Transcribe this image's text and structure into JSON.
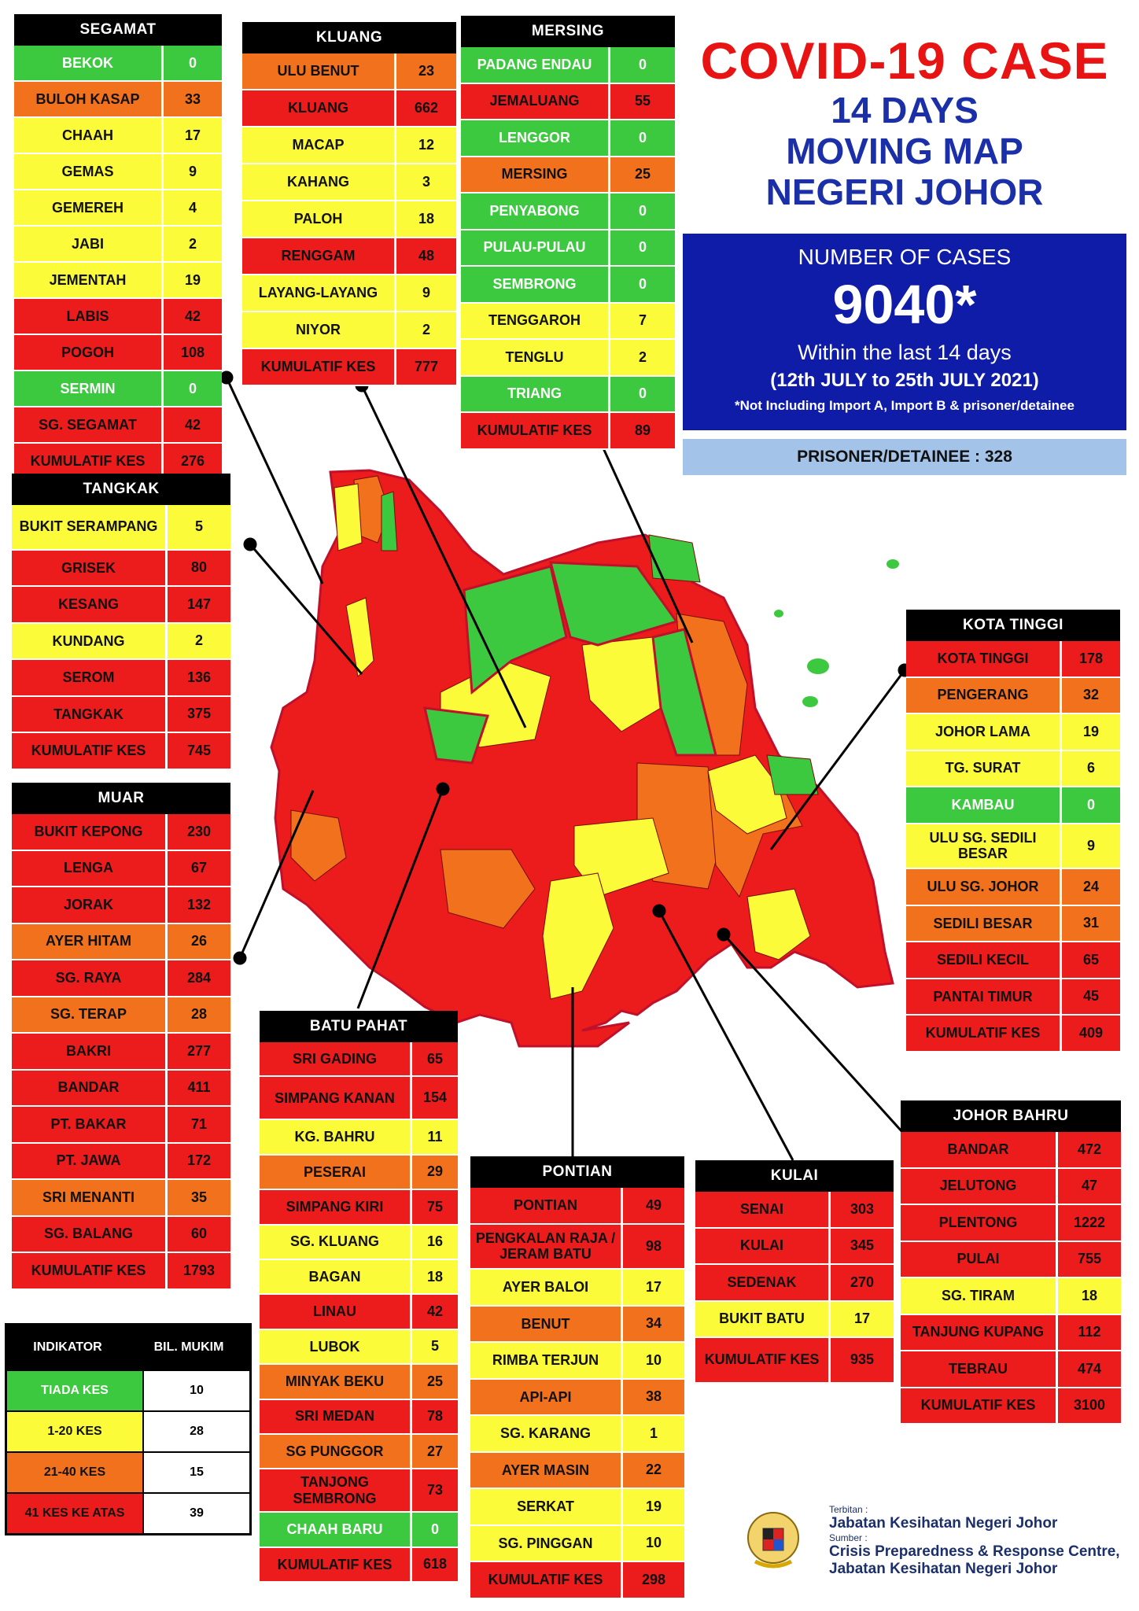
{
  "title": {
    "line1": "COVID-19 CASE",
    "line2": "14 DAYS",
    "line3": "MOVING MAP",
    "line4": "NEGERI JOHOR"
  },
  "cases": {
    "label": "NUMBER OF CASES",
    "total": "9040*",
    "period_text": "Within the last 14 days",
    "date_range": "(12th JULY to 25th JULY 2021)",
    "note": "*Not Including Import A, Import B & prisoner/detainee"
  },
  "prisoner": "PRISONER/DETAINEE : 328",
  "colors": {
    "green": "#3cc93f",
    "yellow": "#fbfb3a",
    "orange": "#f2711d",
    "red": "#ec1c1c",
    "blue": "#0e1ca8"
  },
  "districts": {
    "segamat": {
      "title": "SEGAMAT",
      "rows": [
        {
          "name": "BEKOK",
          "value": "0",
          "level": "g"
        },
        {
          "name": "BULOH KASAP",
          "value": "33",
          "level": "o"
        },
        {
          "name": "CHAAH",
          "value": "17",
          "level": "y"
        },
        {
          "name": "GEMAS",
          "value": "9",
          "level": "y"
        },
        {
          "name": "GEMEREH",
          "value": "4",
          "level": "y"
        },
        {
          "name": "JABI",
          "value": "2",
          "level": "y"
        },
        {
          "name": "JEMENTAH",
          "value": "19",
          "level": "y"
        },
        {
          "name": "LABIS",
          "value": "42",
          "level": "r"
        },
        {
          "name": "POGOH",
          "value": "108",
          "level": "r"
        },
        {
          "name": "SERMIN",
          "value": "0",
          "level": "g"
        },
        {
          "name": "SG. SEGAMAT",
          "value": "42",
          "level": "r"
        },
        {
          "name": "KUMULATIF KES",
          "value": "276",
          "level": "r"
        }
      ]
    },
    "kluang": {
      "title": "KLUANG",
      "rows": [
        {
          "name": "ULU BENUT",
          "value": "23",
          "level": "o"
        },
        {
          "name": "KLUANG",
          "value": "662",
          "level": "r"
        },
        {
          "name": "MACAP",
          "value": "12",
          "level": "y"
        },
        {
          "name": "KAHANG",
          "value": "3",
          "level": "y"
        },
        {
          "name": "PALOH",
          "value": "18",
          "level": "y"
        },
        {
          "name": "RENGGAM",
          "value": "48",
          "level": "r"
        },
        {
          "name": "LAYANG-LAYANG",
          "value": "9",
          "level": "y"
        },
        {
          "name": "NIYOR",
          "value": "2",
          "level": "y"
        },
        {
          "name": "KUMULATIF KES",
          "value": "777",
          "level": "r"
        }
      ]
    },
    "mersing": {
      "title": "MERSING",
      "rows": [
        {
          "name": "PADANG ENDAU",
          "value": "0",
          "level": "g"
        },
        {
          "name": "JEMALUANG",
          "value": "55",
          "level": "r"
        },
        {
          "name": "LENGGOR",
          "value": "0",
          "level": "g"
        },
        {
          "name": "MERSING",
          "value": "25",
          "level": "o"
        },
        {
          "name": "PENYABONG",
          "value": "0",
          "level": "g"
        },
        {
          "name": "PULAU-PULAU",
          "value": "0",
          "level": "g"
        },
        {
          "name": "SEMBRONG",
          "value": "0",
          "level": "g"
        },
        {
          "name": "TENGGAROH",
          "value": "7",
          "level": "y"
        },
        {
          "name": "TENGLU",
          "value": "2",
          "level": "y"
        },
        {
          "name": "TRIANG",
          "value": "0",
          "level": "g"
        },
        {
          "name": "KUMULATIF KES",
          "value": "89",
          "level": "r"
        }
      ]
    },
    "tangkak": {
      "title": "TANGKAK",
      "rows": [
        {
          "name": "BUKIT SERAMPANG",
          "value": "5",
          "level": "y"
        },
        {
          "name": "GRISEK",
          "value": "80",
          "level": "r"
        },
        {
          "name": "KESANG",
          "value": "147",
          "level": "r"
        },
        {
          "name": "KUNDANG",
          "value": "2",
          "level": "y"
        },
        {
          "name": "SEROM",
          "value": "136",
          "level": "r"
        },
        {
          "name": "TANGKAK",
          "value": "375",
          "level": "r"
        },
        {
          "name": "KUMULATIF KES",
          "value": "745",
          "level": "r"
        }
      ]
    },
    "muar": {
      "title": "MUAR",
      "rows": [
        {
          "name": "BUKIT KEPONG",
          "value": "230",
          "level": "r"
        },
        {
          "name": "LENGA",
          "value": "67",
          "level": "r"
        },
        {
          "name": "JORAK",
          "value": "132",
          "level": "r"
        },
        {
          "name": "AYER HITAM",
          "value": "26",
          "level": "o"
        },
        {
          "name": "SG. RAYA",
          "value": "284",
          "level": "r"
        },
        {
          "name": "SG. TERAP",
          "value": "28",
          "level": "o"
        },
        {
          "name": "BAKRI",
          "value": "277",
          "level": "r"
        },
        {
          "name": "BANDAR",
          "value": "411",
          "level": "r"
        },
        {
          "name": "PT. BAKAR",
          "value": "71",
          "level": "r"
        },
        {
          "name": "PT. JAWA",
          "value": "172",
          "level": "r"
        },
        {
          "name": "SRI MENANTI",
          "value": "35",
          "level": "o"
        },
        {
          "name": "SG. BALANG",
          "value": "60",
          "level": "r"
        },
        {
          "name": "KUMULATIF KES",
          "value": "1793",
          "level": "r"
        }
      ]
    },
    "batu_pahat": {
      "title": "BATU PAHAT",
      "rows": [
        {
          "name": "SRI GADING",
          "value": "65",
          "level": "r"
        },
        {
          "name": "SIMPANG KANAN",
          "value": "154",
          "level": "r"
        },
        {
          "name": "KG. BAHRU",
          "value": "11",
          "level": "y"
        },
        {
          "name": "PESERAI",
          "value": "29",
          "level": "o"
        },
        {
          "name": "SIMPANG KIRI",
          "value": "75",
          "level": "r"
        },
        {
          "name": "SG. KLUANG",
          "value": "16",
          "level": "y"
        },
        {
          "name": "BAGAN",
          "value": "18",
          "level": "y"
        },
        {
          "name": "LINAU",
          "value": "42",
          "level": "r"
        },
        {
          "name": "LUBOK",
          "value": "5",
          "level": "y"
        },
        {
          "name": "MINYAK BEKU",
          "value": "25",
          "level": "o"
        },
        {
          "name": "SRI MEDAN",
          "value": "78",
          "level": "r"
        },
        {
          "name": "SG PUNGGOR",
          "value": "27",
          "level": "o"
        },
        {
          "name": "TANJONG SEMBRONG",
          "value": "73",
          "level": "r"
        },
        {
          "name": "CHAAH BARU",
          "value": "0",
          "level": "g"
        },
        {
          "name": "KUMULATIF KES",
          "value": "618",
          "level": "r"
        }
      ]
    },
    "pontian": {
      "title": "PONTIAN",
      "rows": [
        {
          "name": "PONTIAN",
          "value": "49",
          "level": "r"
        },
        {
          "name": "PENGKALAN RAJA / JERAM BATU",
          "value": "98",
          "level": "r"
        },
        {
          "name": "AYER BALOI",
          "value": "17",
          "level": "y"
        },
        {
          "name": "BENUT",
          "value": "34",
          "level": "o"
        },
        {
          "name": "RIMBA TERJUN",
          "value": "10",
          "level": "y"
        },
        {
          "name": "API-API",
          "value": "38",
          "level": "o"
        },
        {
          "name": "SG. KARANG",
          "value": "1",
          "level": "y"
        },
        {
          "name": "AYER MASIN",
          "value": "22",
          "level": "o"
        },
        {
          "name": "SERKAT",
          "value": "19",
          "level": "y"
        },
        {
          "name": "SG. PINGGAN",
          "value": "10",
          "level": "y"
        },
        {
          "name": "KUMULATIF KES",
          "value": "298",
          "level": "r"
        }
      ]
    },
    "kulai": {
      "title": "KULAI",
      "rows": [
        {
          "name": "SENAI",
          "value": "303",
          "level": "r"
        },
        {
          "name": "KULAI",
          "value": "345",
          "level": "r"
        },
        {
          "name": "SEDENAK",
          "value": "270",
          "level": "r"
        },
        {
          "name": "BUKIT BATU",
          "value": "17",
          "level": "y"
        },
        {
          "name": "KUMULATIF KES",
          "value": "935",
          "level": "r"
        }
      ]
    },
    "kota_tinggi": {
      "title": "KOTA TINGGI",
      "rows": [
        {
          "name": "KOTA TINGGI",
          "value": "178",
          "level": "r"
        },
        {
          "name": "PENGERANG",
          "value": "32",
          "level": "o"
        },
        {
          "name": "JOHOR LAMA",
          "value": "19",
          "level": "y"
        },
        {
          "name": "TG. SURAT",
          "value": "6",
          "level": "y"
        },
        {
          "name": "KAMBAU",
          "value": "0",
          "level": "g"
        },
        {
          "name": "ULU SG. SEDILI BESAR",
          "value": "9",
          "level": "y"
        },
        {
          "name": "ULU SG. JOHOR",
          "value": "24",
          "level": "o"
        },
        {
          "name": "SEDILI BESAR",
          "value": "31",
          "level": "o"
        },
        {
          "name": "SEDILI KECIL",
          "value": "65",
          "level": "r"
        },
        {
          "name": "PANTAI TIMUR",
          "value": "45",
          "level": "r"
        },
        {
          "name": "KUMULATIF KES",
          "value": "409",
          "level": "r"
        }
      ]
    },
    "johor_bahru": {
      "title": "JOHOR BAHRU",
      "rows": [
        {
          "name": "BANDAR",
          "value": "472",
          "level": "r"
        },
        {
          "name": "JELUTONG",
          "value": "47",
          "level": "r"
        },
        {
          "name": "PLENTONG",
          "value": "1222",
          "level": "r"
        },
        {
          "name": "PULAI",
          "value": "755",
          "level": "r"
        },
        {
          "name": "SG. TIRAM",
          "value": "18",
          "level": "y"
        },
        {
          "name": "TANJUNG KUPANG",
          "value": "112",
          "level": "r"
        },
        {
          "name": "TEBRAU",
          "value": "474",
          "level": "r"
        },
        {
          "name": "KUMULATIF KES",
          "value": "3100",
          "level": "r"
        }
      ]
    }
  },
  "legend": {
    "header_left": "INDIKATOR",
    "header_right": "BIL. MUKIM",
    "rows": [
      {
        "label": "TIADA KES",
        "count": "10",
        "level": "g"
      },
      {
        "label": "1-20 KES",
        "count": "28",
        "level": "y"
      },
      {
        "label": "21-40 KES",
        "count": "15",
        "level": "o"
      },
      {
        "label": "41 KES KE ATAS",
        "count": "39",
        "level": "r"
      }
    ]
  },
  "credits": {
    "terbitan_label": "Terbitan :",
    "terbitan": "Jabatan Kesihatan Negeri Johor",
    "sumber_label": "Sumber :",
    "sumber_1": "Crisis Preparedness & Response Centre,",
    "sumber_2": "Jabatan Kesihatan Negeri Johor"
  }
}
